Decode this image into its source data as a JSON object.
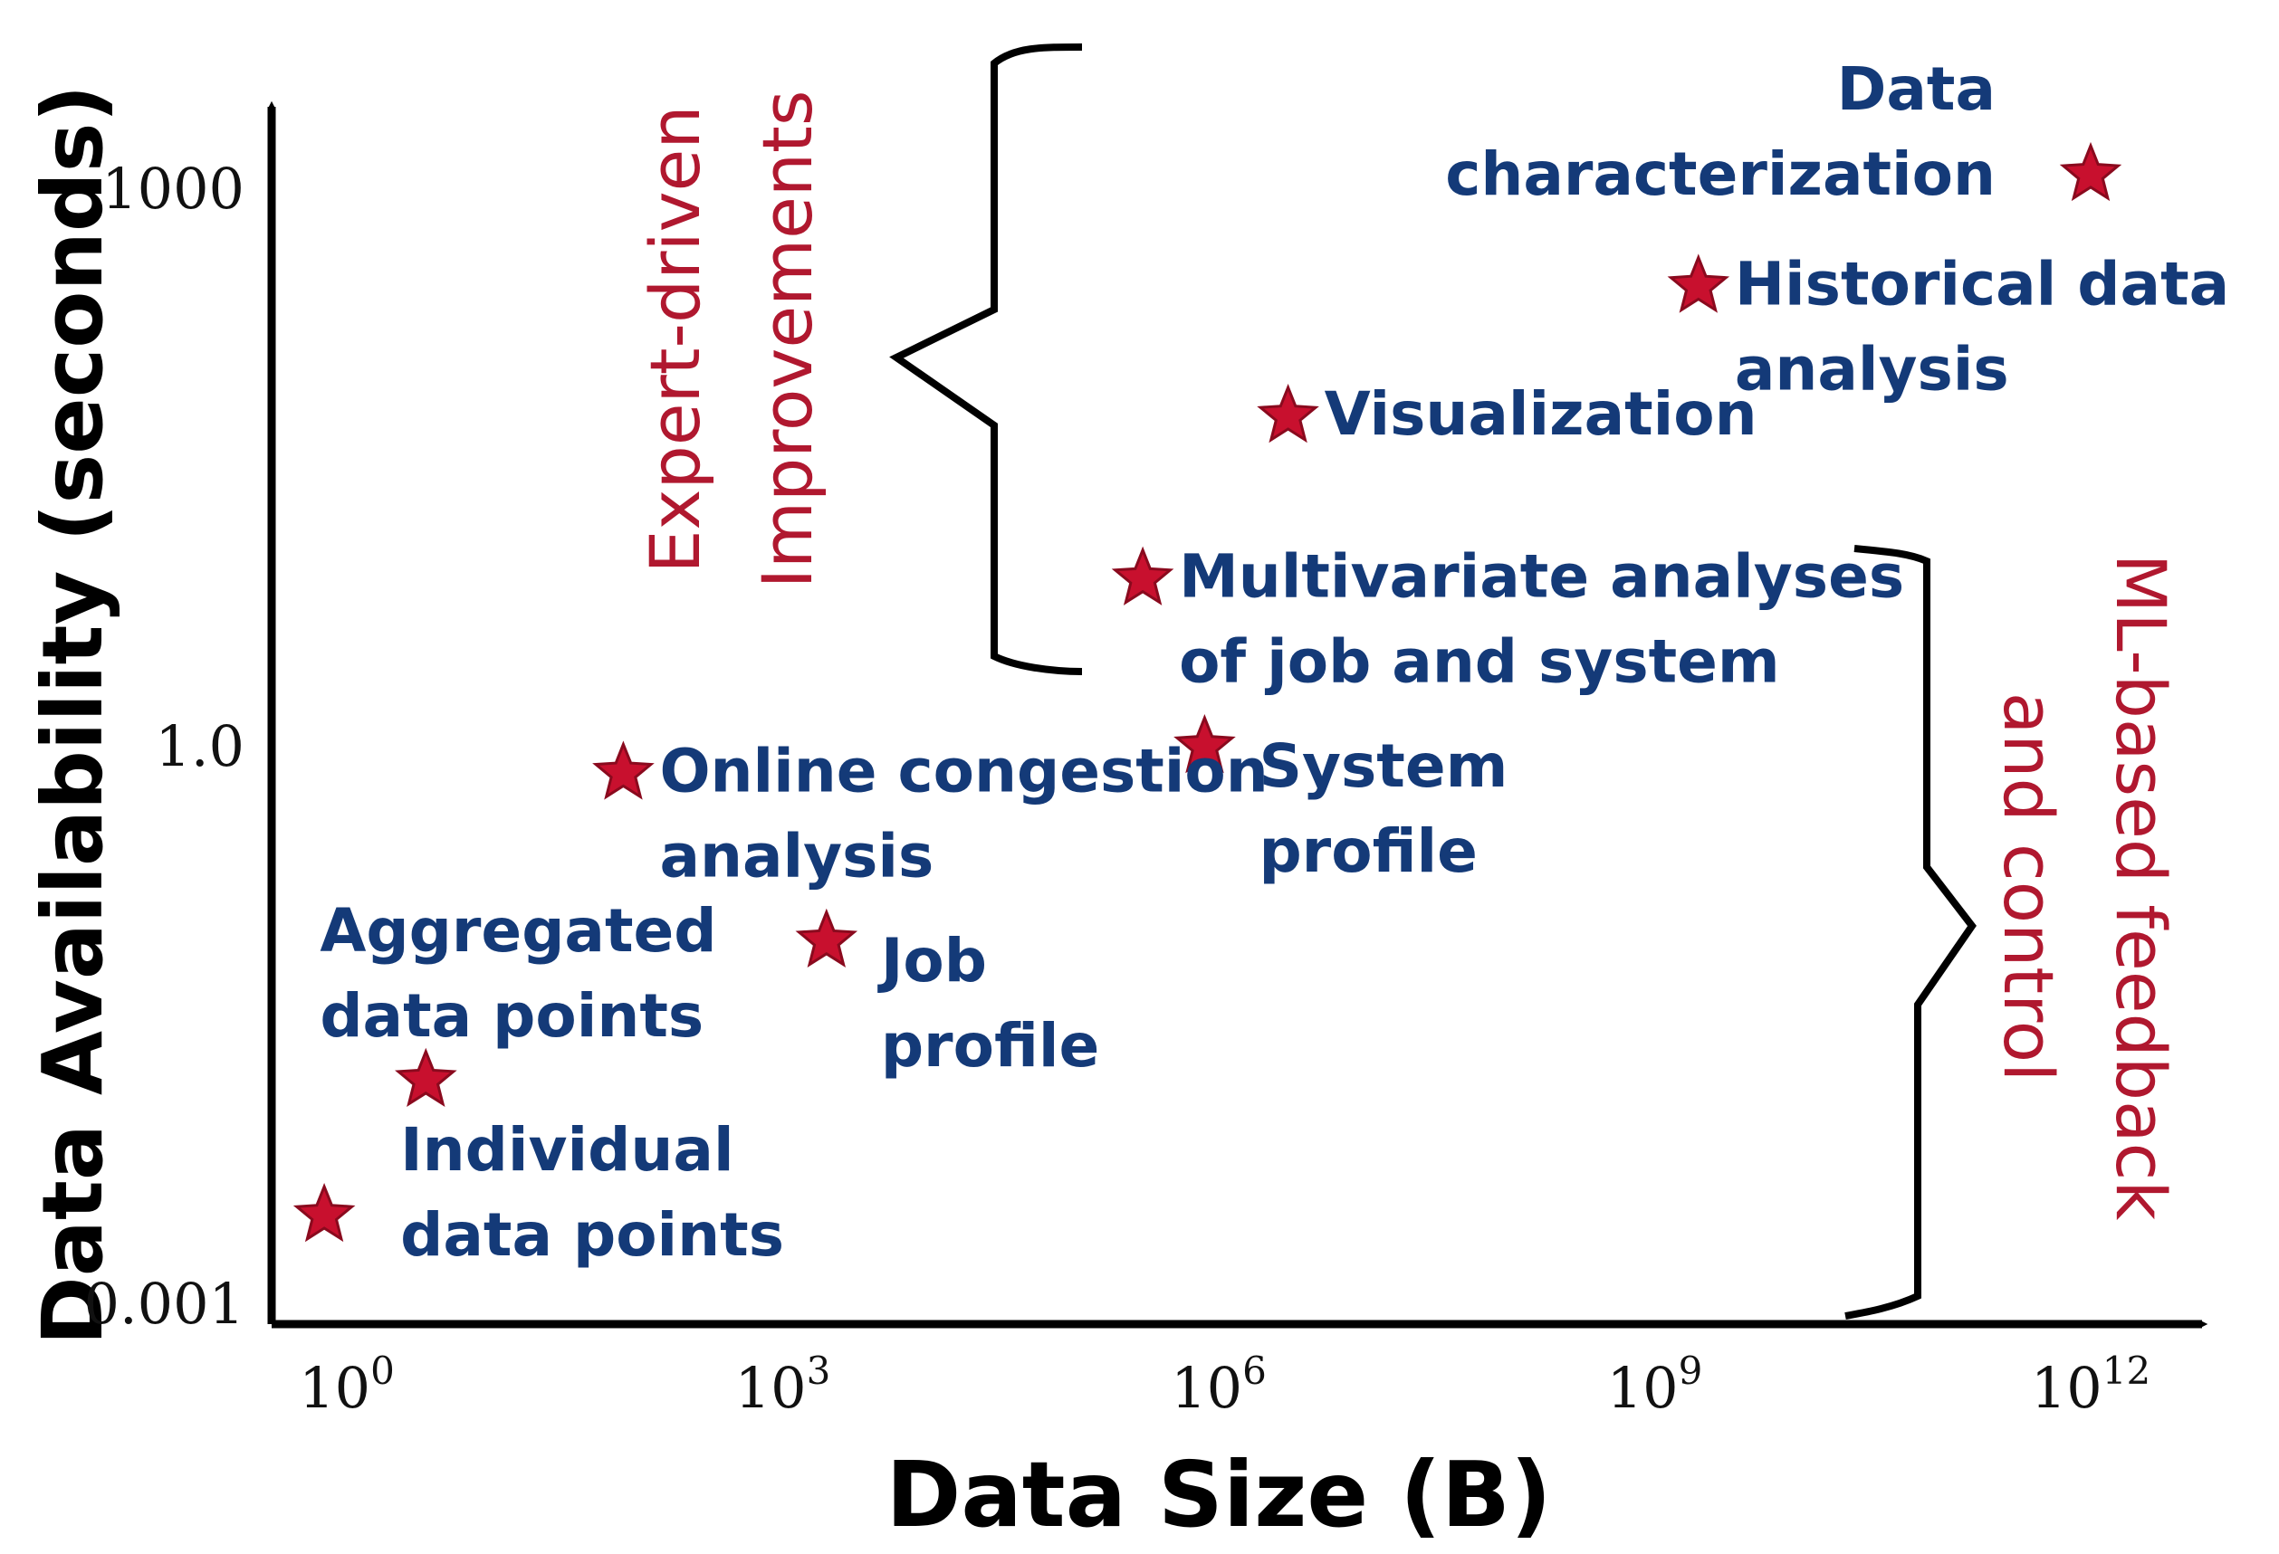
{
  "chart_data": {
    "type": "scatter",
    "title": "",
    "xlabel": "Data Size (B)",
    "ylabel": "Data Availability (seconds)",
    "xscale": "log",
    "yscale": "log",
    "xlim": [
      0.4,
      10000000000000.0
    ],
    "ylim": [
      0.001,
      10000
    ],
    "grid": false,
    "legend": "none",
    "marker": "star",
    "marker_color": "#c8102e",
    "label_color": "#143a78",
    "group_color": "#b0182f",
    "x_ticks": [
      {
        "value": 1,
        "base": "10",
        "exp": "0"
      },
      {
        "value": 1000,
        "base": "10",
        "exp": "3"
      },
      {
        "value": 1000000,
        "base": "10",
        "exp": "6"
      },
      {
        "value": 1000000000,
        "base": "10",
        "exp": "9"
      },
      {
        "value": 1000000000000,
        "base": "10",
        "exp": "12"
      }
    ],
    "y_ticks": [
      {
        "value": 0.001,
        "label": "0.001"
      },
      {
        "value": 1.0,
        "label": "1.0"
      },
      {
        "value": 1000,
        "label": "1000"
      }
    ],
    "points": [
      {
        "x": 0.7,
        "y": 0.003,
        "label_lines": [
          "Individual",
          "data points"
        ],
        "label_pos": "right-up"
      },
      {
        "x": 3.5,
        "y": 0.016,
        "label_lines": [
          "Aggregated",
          "data points"
        ],
        "label_pos": "above-left"
      },
      {
        "x": 80,
        "y": 0.72,
        "label_lines": [
          "Online congestion",
          "analysis"
        ],
        "label_pos": "right"
      },
      {
        "x": 2000,
        "y": 0.09,
        "label_lines": [
          "Job",
          "profile"
        ],
        "label_pos": "right-down"
      },
      {
        "x": 800000,
        "y": 1.0,
        "label_lines": [
          "System",
          "profile"
        ],
        "label_pos": "right-down"
      },
      {
        "x": 300000,
        "y": 8.0,
        "label_lines": [
          "Multivariate analyses",
          "of job and system"
        ],
        "label_pos": "right"
      },
      {
        "x": 3000000,
        "y": 60,
        "label_lines": [
          "Visualization"
        ],
        "label_pos": "right"
      },
      {
        "x": 2000000000,
        "y": 300,
        "label_lines": [
          "Historical data",
          "analysis"
        ],
        "label_pos": "right"
      },
      {
        "x": 1000000000000,
        "y": 1200,
        "label_lines": [
          "Data",
          "characterization"
        ],
        "label_pos": "left"
      }
    ],
    "annotations": [
      {
        "lines": [
          "Expert-driven",
          "Improvements"
        ],
        "rotation": -90
      },
      {
        "lines": [
          "ML-based feedback",
          "and control"
        ],
        "rotation": 90
      }
    ]
  }
}
